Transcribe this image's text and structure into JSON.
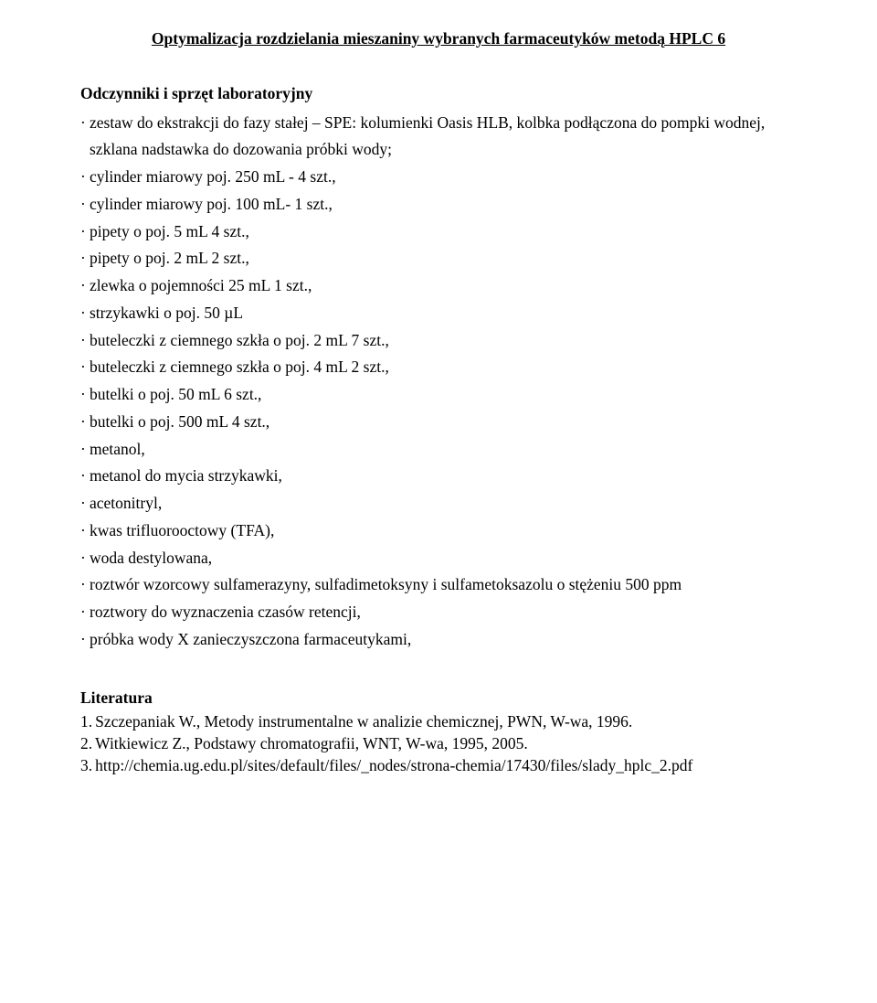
{
  "title": "Optymalizacja rozdzielania mieszaniny wybranych farmaceutyków metodą HPLC 6",
  "section_heading": "Odczynniki i sprzęt laboratoryjny",
  "items": [
    "zestaw do ekstrakcji do fazy stałej – SPE: kolumienki Oasis HLB, kolbka podłączona do pompki wodnej, szklana nadstawka do dozowania próbki wody;",
    "cylinder miarowy poj. 250 mL - 4 szt.,",
    "cylinder miarowy poj. 100 mL- 1 szt.,",
    "pipety o poj. 5 mL 4 szt.,",
    "pipety o poj. 2 mL 2 szt.,",
    "zlewka o pojemności 25 mL 1 szt.,",
    "strzykawki o poj. 50 µL",
    "buteleczki z ciemnego szkła o poj. 2 mL 7 szt.,",
    "buteleczki z ciemnego szkła o poj. 4 mL 2 szt.,",
    "butelki o poj. 50 mL 6 szt.,",
    "butelki o poj. 500 mL 4 szt.,",
    "metanol,",
    "metanol do mycia strzykawki,",
    "acetonitryl,",
    "kwas trifluorooctowy (TFA),",
    "woda destylowana,",
    "roztwór wzorcowy sulfamerazyny, sulfadimetoksyny i sulfametoksazolu o stężeniu 500 ppm",
    "roztwory do wyznaczenia czasów retencji,",
    "próbka wody X zanieczyszczona farmaceutykami,"
  ],
  "lit_heading": "Literatura",
  "lit": [
    {
      "n": "1.",
      "t": "Szczepaniak W., Metody instrumentalne w analizie chemicznej, PWN, W-wa, 1996."
    },
    {
      "n": "2.",
      "t": "Witkiewicz Z., Podstawy chromatografii, WNT, W-wa, 1995, 2005."
    },
    {
      "n": "3.",
      "t": "http://chemia.ug.edu.pl/sites/default/files/_nodes/strona-chemia/17430/files/slady_hplc_2.pdf"
    }
  ],
  "bullet": "·"
}
